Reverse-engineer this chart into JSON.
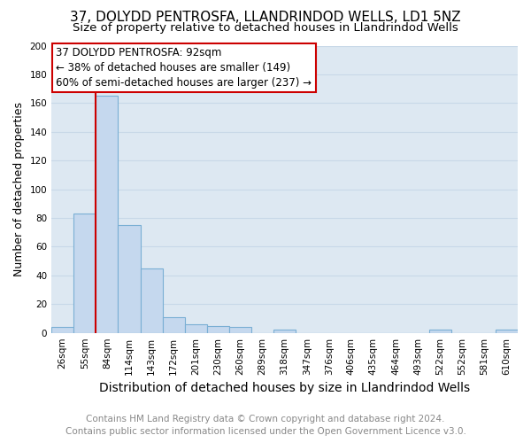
{
  "title": "37, DOLYDD PENTROSFA, LLANDRINDOD WELLS, LD1 5NZ",
  "subtitle": "Size of property relative to detached houses in Llandrindod Wells",
  "xlabel": "Distribution of detached houses by size in Llandrindod Wells",
  "ylabel": "Number of detached properties",
  "footnote1": "Contains HM Land Registry data © Crown copyright and database right 2024.",
  "footnote2": "Contains public sector information licensed under the Open Government Licence v3.0.",
  "bar_labels": [
    "26sqm",
    "55sqm",
    "84sqm",
    "114sqm",
    "143sqm",
    "172sqm",
    "201sqm",
    "230sqm",
    "260sqm",
    "289sqm",
    "318sqm",
    "347sqm",
    "376sqm",
    "406sqm",
    "435sqm",
    "464sqm",
    "493sqm",
    "522sqm",
    "552sqm",
    "581sqm",
    "610sqm"
  ],
  "bar_values": [
    4,
    83,
    165,
    75,
    45,
    11,
    6,
    5,
    4,
    0,
    2,
    0,
    0,
    0,
    0,
    0,
    0,
    2,
    0,
    0,
    2
  ],
  "bar_color": "#c5d8ee",
  "bar_edge_color": "#7aafd4",
  "vline_x_index": 2.0,
  "annotation_title": "37 DOLYDD PENTROSFA: 92sqm",
  "annotation_line2": "← 38% of detached houses are smaller (149)",
  "annotation_line3": "60% of semi-detached houses are larger (237) →",
  "annotation_box_facecolor": "#ffffff",
  "annotation_box_edgecolor": "#cc0000",
  "vline_color": "#cc0000",
  "ylim": [
    0,
    200
  ],
  "yticks": [
    0,
    20,
    40,
    60,
    80,
    100,
    120,
    140,
    160,
    180,
    200
  ],
  "grid_color": "#c8d8e8",
  "bg_color": "#dde8f2",
  "title_fontsize": 11,
  "subtitle_fontsize": 9.5,
  "xlabel_fontsize": 10,
  "ylabel_fontsize": 9,
  "tick_fontsize": 7.5,
  "annot_fontsize": 8.5,
  "footnote_fontsize": 7.5,
  "footnote_color": "#888888"
}
